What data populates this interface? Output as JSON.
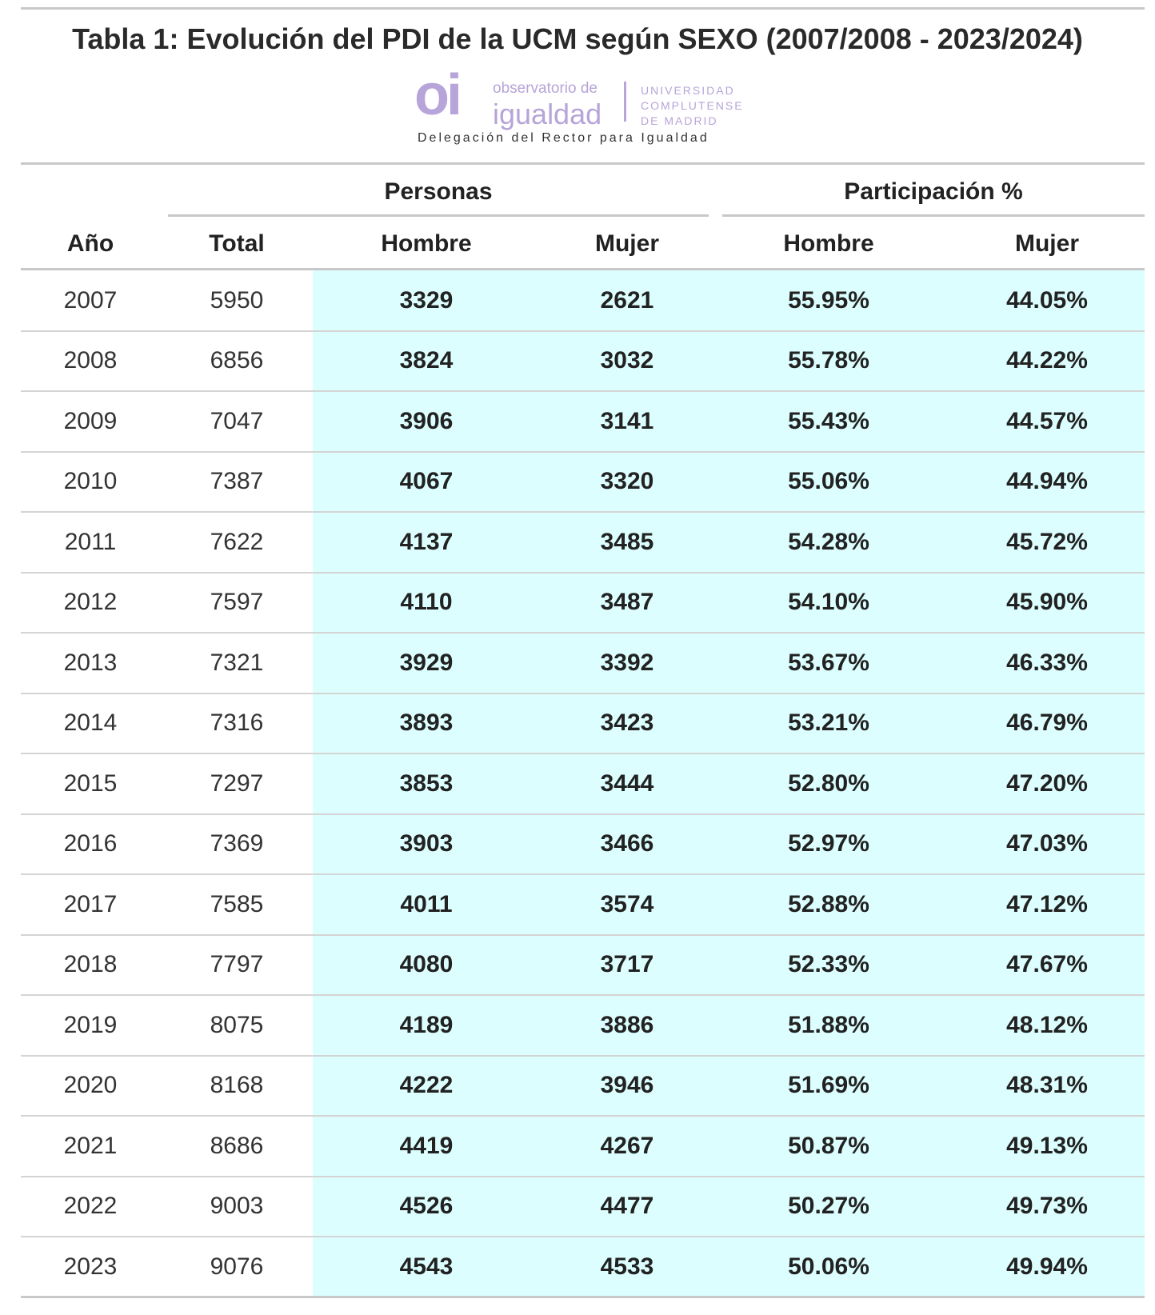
{
  "header": {
    "title": "Tabla 1: Evolución del PDI de la UCM según SEXO (2007/2008 - 2023/2024)"
  },
  "logo": {
    "mark": "oi",
    "line1": "observatorio de",
    "line2": "igualdad",
    "university": [
      "UNIVERSIDAD",
      "COMPLUTENSE",
      "DE MADRID"
    ],
    "tagline": "Delegación del Rector para Igualdad"
  },
  "table": {
    "groups": [
      "Personas",
      "Participación %"
    ],
    "columns": [
      "Año",
      "Total",
      "Hombre",
      "Mujer",
      "Hombre",
      "Mujer"
    ],
    "rows": [
      [
        2007,
        5950,
        3329,
        2621,
        "55.95%",
        "44.05%"
      ],
      [
        2008,
        6856,
        3824,
        3032,
        "55.78%",
        "44.22%"
      ],
      [
        2009,
        7047,
        3906,
        3141,
        "55.43%",
        "44.57%"
      ],
      [
        2010,
        7387,
        4067,
        3320,
        "55.06%",
        "44.94%"
      ],
      [
        2011,
        7622,
        4137,
        3485,
        "54.28%",
        "45.72%"
      ],
      [
        2012,
        7597,
        4110,
        3487,
        "54.10%",
        "45.90%"
      ],
      [
        2013,
        7321,
        3929,
        3392,
        "53.67%",
        "46.33%"
      ],
      [
        2014,
        7316,
        3893,
        3423,
        "53.21%",
        "46.79%"
      ],
      [
        2015,
        7297,
        3853,
        3444,
        "52.80%",
        "47.20%"
      ],
      [
        2016,
        7369,
        3903,
        3466,
        "52.97%",
        "47.03%"
      ],
      [
        2017,
        7585,
        4011,
        3574,
        "52.88%",
        "47.12%"
      ],
      [
        2018,
        7797,
        4080,
        3717,
        "52.33%",
        "47.67%"
      ],
      [
        2019,
        8075,
        4189,
        3886,
        "51.88%",
        "48.12%"
      ],
      [
        2020,
        8168,
        4222,
        3946,
        "51.69%",
        "48.31%"
      ],
      [
        2021,
        8686,
        4419,
        4267,
        "50.87%",
        "49.13%"
      ],
      [
        2022,
        9003,
        4526,
        4477,
        "50.27%",
        "49.73%"
      ],
      [
        2023,
        9076,
        4543,
        4533,
        "50.06%",
        "49.94%"
      ]
    ]
  }
}
